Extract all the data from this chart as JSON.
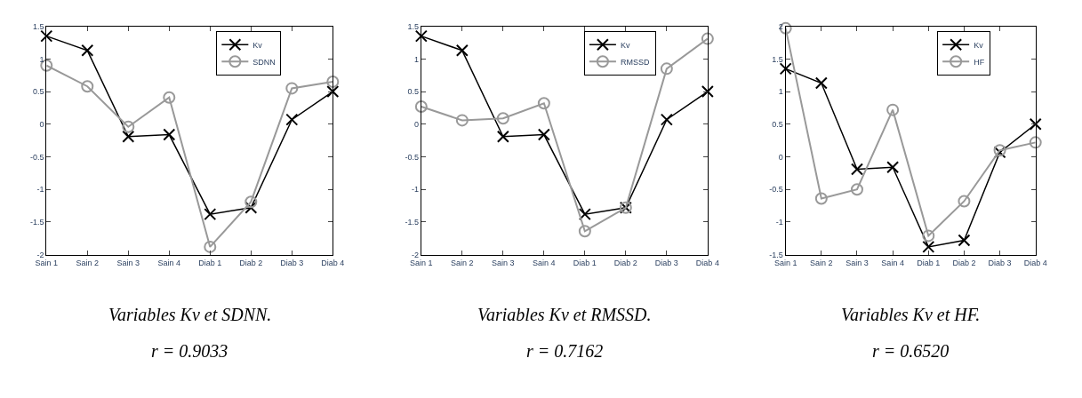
{
  "chart_data": [
    {
      "type": "line",
      "categories": [
        "Sain 1",
        "Sain 2",
        "Sain 3",
        "Sain 4",
        "Diab 1",
        "Diab 2",
        "Diab 3",
        "Diab 4"
      ],
      "ylim": [
        -2,
        1.5
      ],
      "yticks": [
        -2,
        -1.5,
        -1,
        -0.5,
        0,
        0.5,
        1,
        1.5
      ],
      "legend": "top right",
      "series": [
        {
          "name": "Kv",
          "color": "#000000",
          "marker": "cross",
          "values": [
            1.35,
            1.13,
            -0.19,
            -0.16,
            -1.38,
            -1.28,
            0.07,
            0.5
          ]
        },
        {
          "name": "SDNN",
          "color": "#999999",
          "marker": "circle",
          "values": [
            0.9,
            0.58,
            -0.04,
            0.41,
            -1.88,
            -1.19,
            0.55,
            0.65
          ]
        }
      ],
      "annotations": [
        "Variables Kv et SDNN.",
        "r = 0.9033"
      ]
    },
    {
      "type": "line",
      "categories": [
        "Sain 1",
        "Sain 2",
        "Sain 3",
        "Sain 4",
        "Diab 1",
        "Diab 2",
        "Diab 3",
        "Diab 4"
      ],
      "ylim": [
        -2,
        1.5
      ],
      "yticks": [
        -2,
        -1.5,
        -1,
        -0.5,
        0,
        0.5,
        1,
        1.5
      ],
      "legend": "top right",
      "series": [
        {
          "name": "Kv",
          "color": "#000000",
          "marker": "cross",
          "values": [
            1.35,
            1.13,
            -0.19,
            -0.16,
            -1.38,
            -1.28,
            0.07,
            0.5
          ]
        },
        {
          "name": "RMSSD",
          "color": "#999999",
          "marker": "circle",
          "values": [
            0.27,
            0.06,
            0.09,
            0.32,
            -1.64,
            -1.28,
            0.85,
            1.31
          ]
        }
      ],
      "annotations": [
        "Variables Kv et RMSSD.",
        "r = 0.7162"
      ]
    },
    {
      "type": "line",
      "categories": [
        "Sain 1",
        "Sain 2",
        "Sain 3",
        "Sain 4",
        "Diab 1",
        "Diab 2",
        "Diab 3",
        "Diab 4"
      ],
      "ylim": [
        -1.5,
        2
      ],
      "yticks": [
        -1.5,
        -1,
        -0.5,
        0,
        0.5,
        1,
        1.5,
        2
      ],
      "legend": "top right",
      "series": [
        {
          "name": "Kv",
          "color": "#000000",
          "marker": "cross",
          "values": [
            1.35,
            1.13,
            -0.19,
            -0.16,
            -1.38,
            -1.28,
            0.07,
            0.5
          ]
        },
        {
          "name": "HF",
          "color": "#999999",
          "marker": "circle",
          "values": [
            1.97,
            -0.64,
            -0.5,
            0.72,
            -1.21,
            -0.68,
            0.1,
            0.22
          ]
        }
      ],
      "annotations": [
        "Variables Kv et HF.",
        "r = 0.6520"
      ]
    }
  ]
}
